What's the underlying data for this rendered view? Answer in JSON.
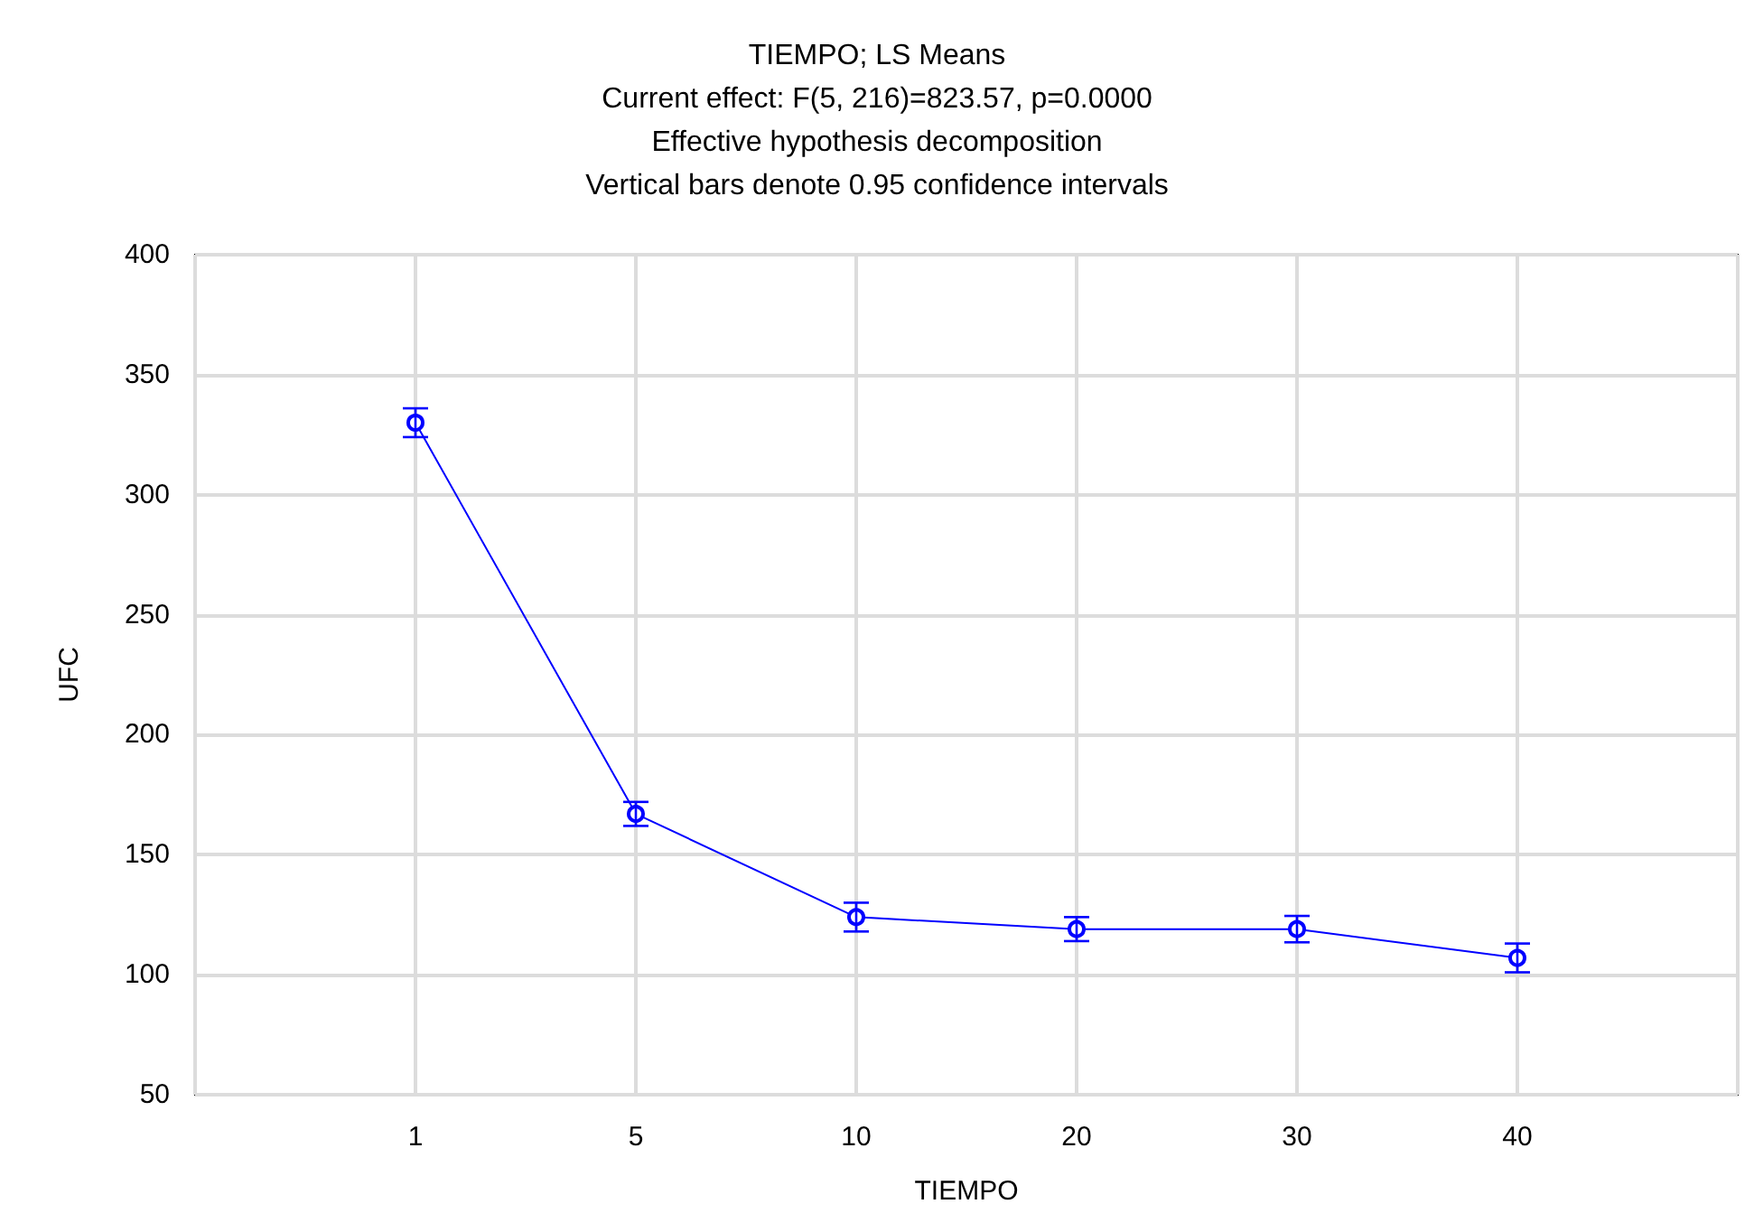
{
  "chart_data": {
    "type": "line",
    "title": "TIEMPO; LS Means",
    "subtitle": "Current effect: F(5, 216)=823.57, p=0.0000",
    "annotations": [
      "Effective hypothesis decomposition",
      "Vertical bars denote 0.95 confidence intervals"
    ],
    "xlabel": "TIEMPO",
    "ylabel": "UFC",
    "categories": [
      "1",
      "5",
      "10",
      "20",
      "30",
      "40"
    ],
    "series": [
      {
        "color": "#0000ff",
        "values": [
          330,
          167,
          124,
          119,
          119,
          107
        ],
        "errors": [
          6,
          5,
          6,
          5,
          5.5,
          6
        ]
      }
    ],
    "ylim": [
      50,
      400
    ],
    "yticks": [
      50,
      100,
      150,
      200,
      250,
      300,
      350,
      400
    ],
    "grid": true,
    "marker": "circle",
    "line_style": "solid"
  }
}
